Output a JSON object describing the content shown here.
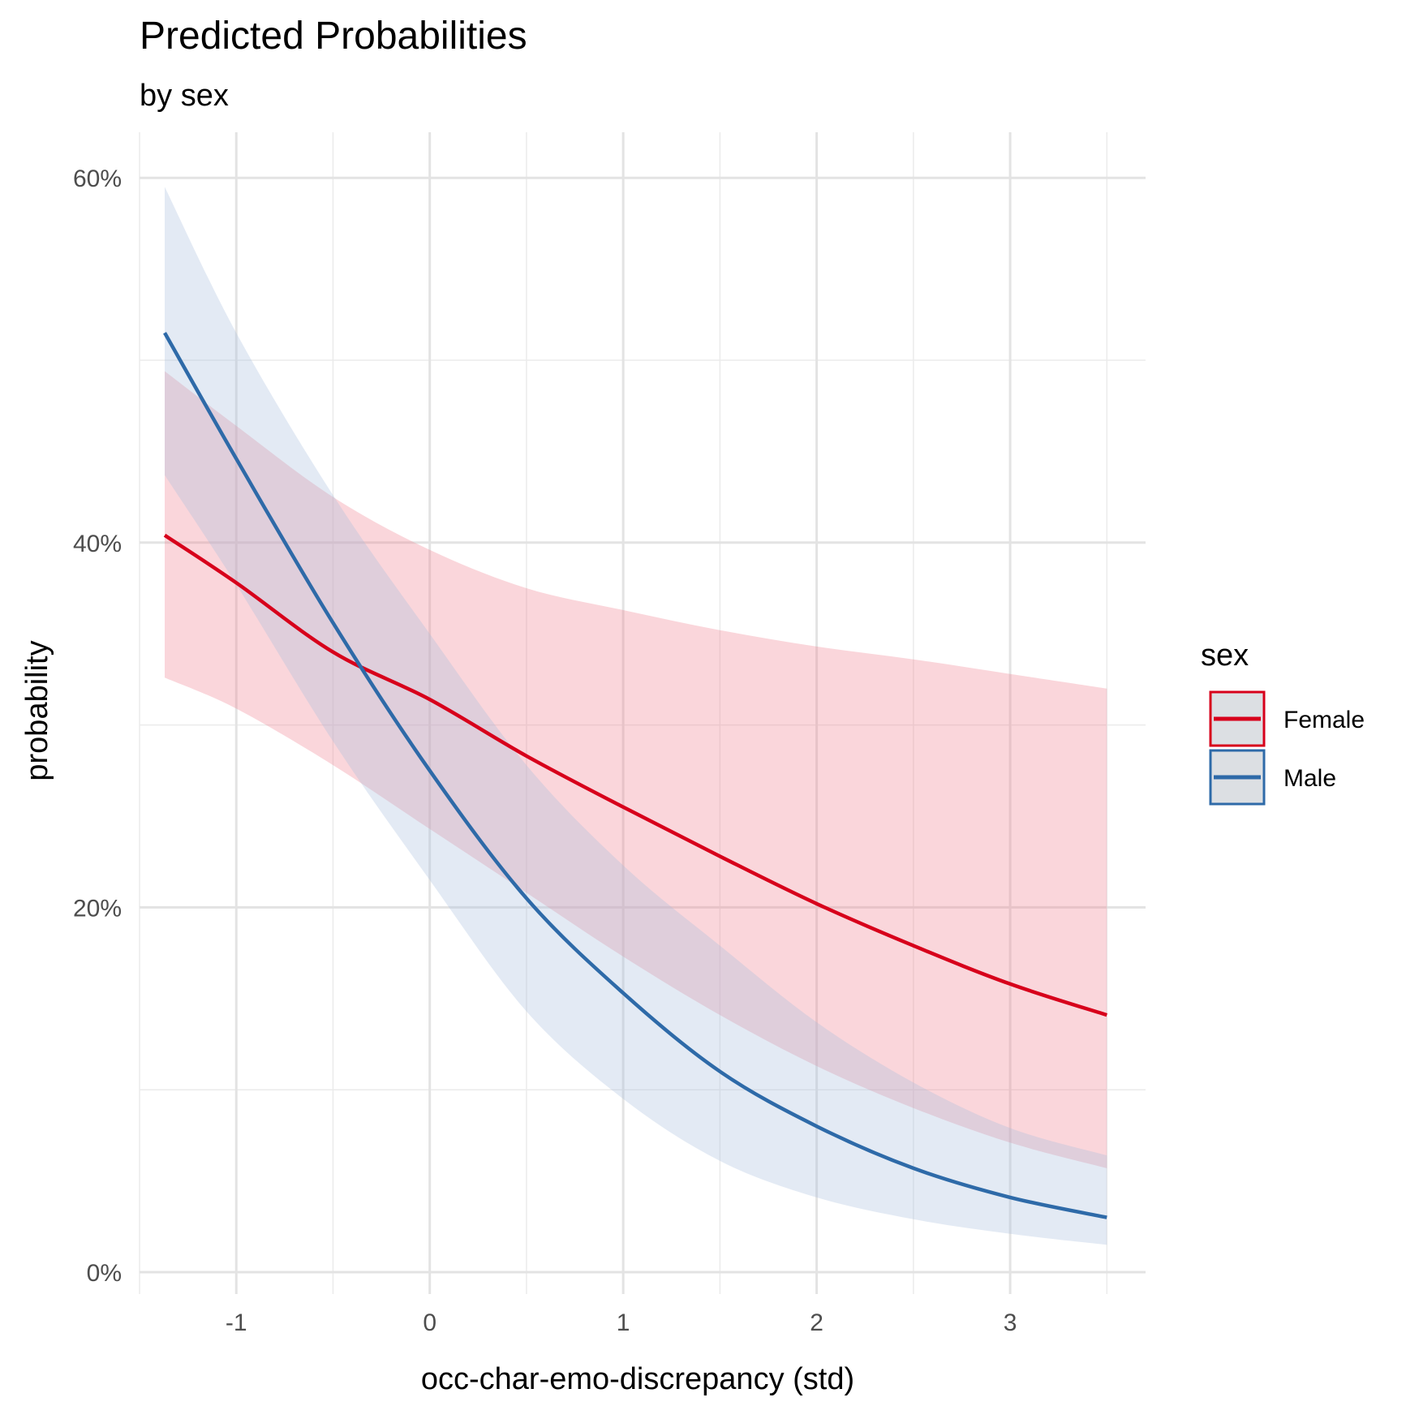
{
  "chart_data": {
    "type": "line",
    "title": "Predicted Probabilities",
    "subtitle": "by sex",
    "xlabel": "occ-char-emo-discrepancy (std)",
    "ylabel": "probability",
    "xlim": [
      -1.5,
      3.7
    ],
    "ylim": [
      -0.012,
      0.625
    ],
    "x_ticks": [
      -1,
      0,
      1,
      2,
      3
    ],
    "x_tick_labels": [
      "-1",
      "0",
      "1",
      "2",
      "3"
    ],
    "y_ticks": [
      0,
      0.2,
      0.4,
      0.6
    ],
    "y_tick_labels": [
      "0%",
      "20%",
      "40%",
      "60%"
    ],
    "grid": true,
    "legend": {
      "title": "sex",
      "position": "right"
    },
    "series": [
      {
        "name": "Female",
        "color": "#d7001b",
        "band_color": "#f08090",
        "x": [
          -1.37,
          -1.0,
          -0.5,
          0.0,
          0.5,
          1.0,
          1.5,
          2.0,
          2.5,
          3.0,
          3.5
        ],
        "y": [
          0.404,
          0.378,
          0.34,
          0.314,
          0.283,
          0.255,
          0.228,
          0.202,
          0.179,
          0.158,
          0.141
        ],
        "lower": [
          0.326,
          0.309,
          0.278,
          0.243,
          0.208,
          0.173,
          0.141,
          0.113,
          0.09,
          0.071,
          0.057
        ],
        "upper": [
          0.494,
          0.464,
          0.425,
          0.396,
          0.375,
          0.363,
          0.352,
          0.343,
          0.336,
          0.328,
          0.32
        ]
      },
      {
        "name": "Male",
        "color": "#2e6aa8",
        "band_color": "#a8bedd",
        "x": [
          -1.37,
          -1.0,
          -0.5,
          0.0,
          0.5,
          1.0,
          1.5,
          2.0,
          2.5,
          3.0,
          3.5
        ],
        "y": [
          0.515,
          0.446,
          0.356,
          0.275,
          0.205,
          0.153,
          0.11,
          0.08,
          0.057,
          0.041,
          0.03
        ],
        "lower": [
          0.437,
          0.377,
          0.291,
          0.215,
          0.143,
          0.095,
          0.061,
          0.041,
          0.029,
          0.021,
          0.015
        ],
        "upper": [
          0.595,
          0.515,
          0.426,
          0.35,
          0.278,
          0.223,
          0.179,
          0.137,
          0.104,
          0.079,
          0.064
        ]
      }
    ]
  }
}
